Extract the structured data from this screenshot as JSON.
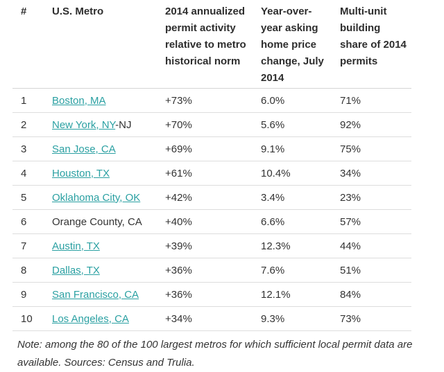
{
  "chart_data": {
    "type": "table",
    "columns": [
      "#",
      "U.S. Metro",
      "2014 annualized permit activity relative to metro historical norm",
      "Year-over-year asking home price change, July 2014",
      "Multi-unit building share of 2014 permits"
    ],
    "rows": [
      {
        "rank": "1",
        "metro": "Boston, MA",
        "metro_suffix": "",
        "metro_is_link": true,
        "permit_activity": "+73%",
        "price_change": "6.0%",
        "multi_unit_share": "71%"
      },
      {
        "rank": "2",
        "metro": "New York, NY",
        "metro_suffix": "-NJ",
        "metro_is_link": true,
        "permit_activity": "+70%",
        "price_change": "5.6%",
        "multi_unit_share": "92%"
      },
      {
        "rank": "3",
        "metro": "San Jose, CA",
        "metro_suffix": "",
        "metro_is_link": true,
        "permit_activity": "+69%",
        "price_change": "9.1%",
        "multi_unit_share": "75%"
      },
      {
        "rank": "4",
        "metro": "Houston, TX",
        "metro_suffix": "",
        "metro_is_link": true,
        "permit_activity": "+61%",
        "price_change": "10.4%",
        "multi_unit_share": "34%"
      },
      {
        "rank": "5",
        "metro": "Oklahoma City, OK",
        "metro_suffix": "",
        "metro_is_link": true,
        "permit_activity": "+42%",
        "price_change": "3.4%",
        "multi_unit_share": "23%"
      },
      {
        "rank": "6",
        "metro": "Orange County, CA",
        "metro_suffix": "",
        "metro_is_link": false,
        "permit_activity": "+40%",
        "price_change": "6.6%",
        "multi_unit_share": "57%"
      },
      {
        "rank": "7",
        "metro": "Austin, TX",
        "metro_suffix": "",
        "metro_is_link": true,
        "permit_activity": "+39%",
        "price_change": "12.3%",
        "multi_unit_share": "44%"
      },
      {
        "rank": "8",
        "metro": "Dallas, TX",
        "metro_suffix": "",
        "metro_is_link": true,
        "permit_activity": "+36%",
        "price_change": "7.6%",
        "multi_unit_share": "51%"
      },
      {
        "rank": "9",
        "metro": "San Francisco, CA",
        "metro_suffix": "",
        "metro_is_link": true,
        "permit_activity": "+36%",
        "price_change": "12.1%",
        "multi_unit_share": "84%"
      },
      {
        "rank": "10",
        "metro": "Los Angeles, CA",
        "metro_suffix": "",
        "metro_is_link": true,
        "permit_activity": "+34%",
        "price_change": "9.3%",
        "multi_unit_share": "73%"
      }
    ]
  },
  "note": "Note: among the 80 of the 100 largest metros for which sufficient local permit data are available. Sources: Census and Trulia.",
  "colors": {
    "link_teal": "#2aa0a2",
    "text": "#333333",
    "divider": "#dddddd"
  }
}
